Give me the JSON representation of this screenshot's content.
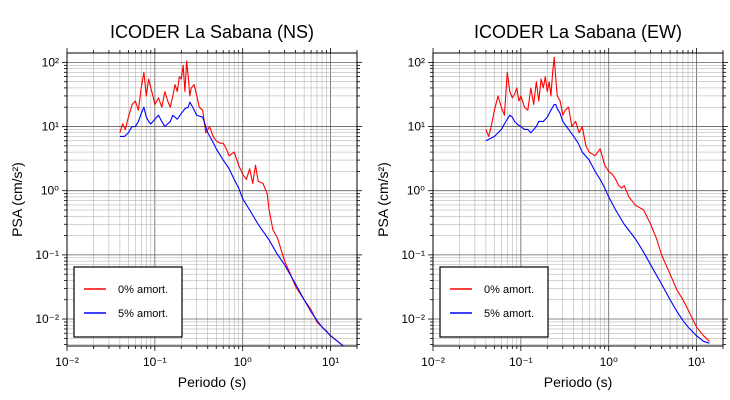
{
  "chart_data": [
    {
      "type": "line",
      "title": "ICODER La Sabana (NS)",
      "xlabel": "Periodo (s)",
      "ylabel": "PSA (cm/s²)",
      "x_scale": "log",
      "y_scale": "log",
      "xlim": [
        0.01,
        20
      ],
      "ylim": [
        0.0038,
        140
      ],
      "x_ticks": [
        "10⁻²",
        "10⁻¹",
        "10⁰",
        "10¹"
      ],
      "y_ticks": [
        "10⁻²",
        "10⁻¹",
        "10⁰",
        "10¹",
        "10²"
      ],
      "grid": true,
      "legend_position": "bottom-left",
      "series": [
        {
          "name": "0% amort.",
          "color": "#ff0000",
          "x": [
            0.04,
            0.043,
            0.046,
            0.05,
            0.055,
            0.06,
            0.065,
            0.07,
            0.075,
            0.08,
            0.085,
            0.09,
            0.095,
            0.1,
            0.11,
            0.12,
            0.13,
            0.14,
            0.15,
            0.16,
            0.17,
            0.18,
            0.19,
            0.2,
            0.21,
            0.22,
            0.23,
            0.24,
            0.25,
            0.26,
            0.28,
            0.3,
            0.32,
            0.35,
            0.38,
            0.42,
            0.46,
            0.5,
            0.55,
            0.6,
            0.65,
            0.7,
            0.8,
            0.9,
            1.0,
            1.1,
            1.2,
            1.3,
            1.4,
            1.5,
            1.7,
            1.9,
            2.0,
            2.2,
            2.5,
            3.0,
            3.5,
            4.0,
            5.0,
            6.0,
            7.0,
            8.0,
            9.0,
            10.0,
            12.0,
            14.0
          ],
          "y": [
            8,
            11,
            9,
            14,
            22,
            25,
            18,
            40,
            70,
            30,
            55,
            40,
            30,
            22,
            28,
            20,
            35,
            25,
            20,
            30,
            45,
            35,
            60,
            55,
            90,
            35,
            105,
            60,
            30,
            40,
            45,
            30,
            20,
            18,
            8,
            10,
            7,
            6,
            5.5,
            5.5,
            4.5,
            3.5,
            4,
            2.5,
            1.8,
            1.5,
            2.2,
            1.3,
            2.5,
            1.4,
            1.3,
            0.9,
            0.5,
            0.25,
            0.18,
            0.08,
            0.05,
            0.032,
            0.02,
            0.014,
            0.009,
            0.0075,
            0.0065,
            0.0055,
            0.0045,
            0.0038
          ]
        },
        {
          "name": "5% amort.",
          "color": "#0000ff",
          "x": [
            0.04,
            0.045,
            0.05,
            0.055,
            0.06,
            0.065,
            0.07,
            0.075,
            0.08,
            0.085,
            0.09,
            0.1,
            0.11,
            0.12,
            0.13,
            0.14,
            0.15,
            0.16,
            0.18,
            0.2,
            0.22,
            0.24,
            0.25,
            0.26,
            0.28,
            0.3,
            0.35,
            0.4,
            0.45,
            0.5,
            0.6,
            0.7,
            0.8,
            0.9,
            1.0,
            1.2,
            1.5,
            2.0,
            2.5,
            3.0,
            4.0,
            5.0,
            6.0,
            7.0,
            8.0,
            10.0,
            12.0,
            14.0
          ],
          "y": [
            7,
            7,
            8,
            10,
            10,
            12,
            16,
            20,
            14,
            12,
            11,
            13,
            15,
            12,
            10,
            11,
            12,
            15,
            13,
            16,
            19,
            20,
            24,
            22,
            18,
            15,
            14,
            8,
            6,
            4.5,
            3,
            2.2,
            1.5,
            1.1,
            0.75,
            0.5,
            0.3,
            0.17,
            0.1,
            0.07,
            0.035,
            0.02,
            0.013,
            0.0095,
            0.0075,
            0.0055,
            0.0045,
            0.0038
          ]
        }
      ]
    },
    {
      "type": "line",
      "title": "ICODER La Sabana (EW)",
      "xlabel": "Periodo (s)",
      "ylabel": "PSA (cm/s²)",
      "x_scale": "log",
      "y_scale": "log",
      "xlim": [
        0.01,
        20
      ],
      "ylim": [
        0.0038,
        140
      ],
      "x_ticks": [
        "10⁻²",
        "10⁻¹",
        "10⁰",
        "10¹"
      ],
      "y_ticks": [
        "10⁻²",
        "10⁻¹",
        "10⁰",
        "10¹",
        "10²"
      ],
      "grid": true,
      "legend_position": "bottom-left",
      "series": [
        {
          "name": "0% amort.",
          "color": "#ff0000",
          "x": [
            0.04,
            0.043,
            0.046,
            0.05,
            0.055,
            0.06,
            0.065,
            0.07,
            0.075,
            0.08,
            0.085,
            0.09,
            0.095,
            0.1,
            0.11,
            0.12,
            0.13,
            0.14,
            0.15,
            0.16,
            0.17,
            0.18,
            0.19,
            0.2,
            0.21,
            0.22,
            0.23,
            0.24,
            0.25,
            0.26,
            0.28,
            0.3,
            0.32,
            0.35,
            0.38,
            0.42,
            0.46,
            0.5,
            0.55,
            0.6,
            0.7,
            0.8,
            0.9,
            1.0,
            1.1,
            1.2,
            1.3,
            1.4,
            1.5,
            1.7,
            2.0,
            2.5,
            3.0,
            3.5,
            4.0,
            5.0,
            6.0,
            7.0,
            8.0,
            9.0,
            10.0,
            12.0,
            14.0
          ],
          "y": [
            9,
            7,
            10,
            18,
            30,
            20,
            15,
            70,
            35,
            28,
            32,
            40,
            25,
            30,
            20,
            18,
            40,
            22,
            50,
            25,
            55,
            40,
            60,
            35,
            50,
            30,
            70,
            120,
            55,
            30,
            25,
            15,
            18,
            20,
            10,
            12,
            8,
            10,
            5,
            4,
            3.5,
            4.5,
            2.5,
            2,
            1.8,
            1.5,
            1.2,
            1.1,
            1.2,
            0.8,
            0.6,
            0.5,
            0.3,
            0.18,
            0.1,
            0.05,
            0.028,
            0.02,
            0.014,
            0.01,
            0.0075,
            0.0055,
            0.0045
          ]
        },
        {
          "name": "5% amort.",
          "color": "#0000ff",
          "x": [
            0.04,
            0.045,
            0.05,
            0.055,
            0.06,
            0.065,
            0.07,
            0.075,
            0.08,
            0.085,
            0.09,
            0.1,
            0.11,
            0.12,
            0.13,
            0.14,
            0.15,
            0.16,
            0.18,
            0.2,
            0.22,
            0.24,
            0.25,
            0.26,
            0.28,
            0.3,
            0.35,
            0.4,
            0.45,
            0.5,
            0.6,
            0.7,
            0.8,
            0.9,
            1.0,
            1.2,
            1.5,
            2.0,
            2.5,
            3.0,
            4.0,
            5.0,
            6.0,
            7.0,
            8.0,
            10.0,
            12.0,
            14.0
          ],
          "y": [
            6,
            6.5,
            7,
            8,
            9,
            11,
            13,
            15,
            14,
            12,
            11,
            10,
            9,
            9,
            8,
            9,
            10,
            12,
            12,
            14,
            18,
            22,
            22,
            19,
            16,
            12,
            9,
            7,
            5.5,
            4,
            3,
            2,
            1.5,
            1.1,
            0.8,
            0.5,
            0.3,
            0.18,
            0.11,
            0.07,
            0.035,
            0.02,
            0.013,
            0.0095,
            0.0075,
            0.0055,
            0.0045,
            0.0042
          ]
        }
      ]
    }
  ]
}
